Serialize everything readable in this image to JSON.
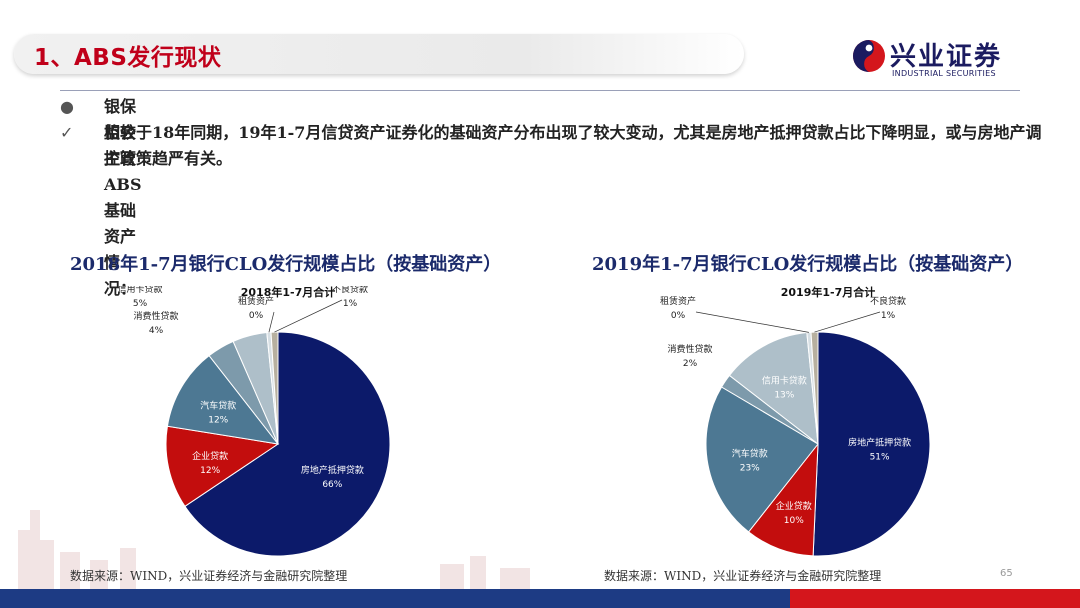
{
  "header": {
    "title": "1、ABS发行现状",
    "logo_cn": "兴业证券",
    "logo_en": "INDUSTRIAL SECURITIES",
    "accent_color": "#c0001a"
  },
  "bullets": [
    {
      "marker": "●",
      "text": "银保监会主管ABS基础资产情况："
    },
    {
      "marker": "✓",
      "text": "相较于18年同期，19年1-7月信贷资产证券化的基础资产分布出现了较大变动，尤其是房地产抵押贷款占比下降明显，或与房地产调控政策趋严有关。"
    }
  ],
  "chart_data": [
    {
      "type": "pie",
      "title": "2018年1-7月银行CLO发行规模占比（按基础资产）",
      "inner_title": "2018年1-7月合计",
      "slices": [
        {
          "name": "房地产抵押贷款",
          "value": 66,
          "label": "66%",
          "color": "#0c1a6a"
        },
        {
          "name": "企业贷款",
          "value": 12,
          "label": "12%",
          "color": "#c30d0d"
        },
        {
          "name": "汽车贷款",
          "value": 12,
          "label": "12%",
          "color": "#4d7893"
        },
        {
          "name": "消费性贷款",
          "value": 4,
          "label": "4%",
          "color": "#7d9aab"
        },
        {
          "name": "信用卡贷款",
          "value": 5,
          "label": "5%",
          "color": "#aebfc9"
        },
        {
          "name": "租赁资产",
          "value": 0,
          "label": "0%",
          "color": "#d7dfe4"
        },
        {
          "name": "不良贷款",
          "value": 1,
          "label": "1%",
          "color": "#b7b0a0"
        }
      ]
    },
    {
      "type": "pie",
      "title": "2019年1-7月银行CLO发行规模占比（按基础资产）",
      "inner_title": "2019年1-7月合计",
      "slices": [
        {
          "name": "房地产抵押贷款",
          "value": 51,
          "label": "51%",
          "color": "#0c1a6a"
        },
        {
          "name": "企业贷款",
          "value": 10,
          "label": "10%",
          "color": "#c30d0d"
        },
        {
          "name": "汽车贷款",
          "value": 23,
          "label": "23%",
          "color": "#4d7893"
        },
        {
          "name": "消费性贷款",
          "value": 2,
          "label": "2%",
          "color": "#7d9aab"
        },
        {
          "name": "信用卡贷款",
          "value": 13,
          "label": "13%",
          "color": "#aebfc9"
        },
        {
          "name": "租赁资产",
          "value": 0,
          "label": "0%",
          "color": "#d7dfe4"
        },
        {
          "name": "不良贷款",
          "value": 1,
          "label": "1%",
          "color": "#b7b0a0"
        }
      ]
    }
  ],
  "sources": [
    "数据来源：WIND，兴业证券经济与金融研究院整理",
    "数据来源：WIND，兴业证券经济与金融研究院整理"
  ],
  "page_number": "65",
  "colors": {
    "bar_blue": "#1d3b84",
    "bar_red": "#d4161c",
    "title_blue": "#1b2a6b"
  }
}
